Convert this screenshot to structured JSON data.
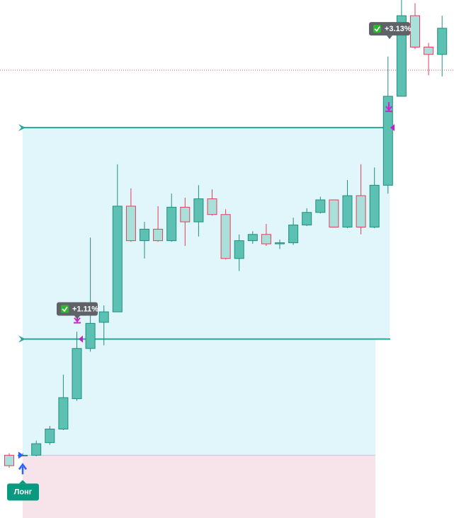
{
  "chart_data": {
    "type": "candlestick",
    "series": [
      {
        "name": null,
        "up_color": "#5cc0b3",
        "down_color": "#a9e0d9",
        "up_border": "#1f8f80",
        "down_border": "#e0405a",
        "open": [
          0.0,
          0.0,
          0.0,
          0.12,
          0.25,
          0.54,
          1.02,
          1.27,
          1.37,
          2.38,
          2.05,
          2.16,
          2.05,
          2.37,
          2.23,
          2.45,
          2.3,
          1.88,
          2.05,
          2.11,
          2.02,
          2.03,
          2.2,
          2.32,
          2.44,
          2.18,
          2.48,
          2.18,
          2.58,
          3.43,
          4.2,
          3.9,
          3.83
        ],
        "high": [
          0.02,
          0.02,
          0.14,
          0.28,
          0.77,
          1.18,
          2.08,
          1.43,
          2.78,
          2.55,
          2.23,
          2.38,
          2.5,
          2.46,
          2.58,
          2.54,
          2.35,
          2.11,
          2.14,
          2.21,
          2.06,
          2.27,
          2.36,
          2.47,
          2.44,
          2.63,
          2.78,
          2.75,
          3.81,
          4.35,
          4.32,
          3.94,
          4.2
        ],
        "low": [
          -0.12,
          -0.01,
          -0.01,
          0.1,
          0.24,
          0.52,
          0.99,
          1.05,
          1.37,
          2.04,
          1.88,
          2.04,
          2.04,
          2.0,
          2.09,
          2.29,
          1.87,
          1.76,
          2.02,
          2.0,
          1.97,
          2.01,
          2.19,
          2.31,
          2.18,
          2.17,
          2.11,
          2.17,
          2.5,
          3.43,
          3.88,
          3.63,
          3.62
        ],
        "close": [
          -0.1,
          0.0,
          0.11,
          0.25,
          0.55,
          1.02,
          1.26,
          1.37,
          2.38,
          2.05,
          2.16,
          2.05,
          2.37,
          2.23,
          2.45,
          2.3,
          1.88,
          2.05,
          2.11,
          2.02,
          2.03,
          2.2,
          2.32,
          2.44,
          2.18,
          2.48,
          2.18,
          2.58,
          3.43,
          4.2,
          3.9,
          3.83,
          4.08
        ]
      }
    ],
    "ylim": [
      -0.6,
      4.35
    ],
    "entry": {
      "label": "Лонг",
      "value": 0
    },
    "annotations": [
      {
        "text": "+1.11%",
        "value": 1.11
      },
      {
        "text": "+3.13%",
        "value": 3.13
      }
    ],
    "price_line": 3.68
  }
}
